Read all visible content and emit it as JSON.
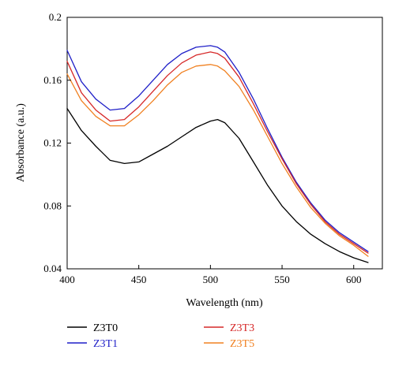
{
  "chart_data": {
    "type": "line",
    "title": "",
    "xlabel": "Wavelength (nm)",
    "ylabel": "Absorbance (a.u.)",
    "xlim": [
      400,
      620
    ],
    "ylim": [
      0.04,
      0.2
    ],
    "xticks": [
      400,
      450,
      500,
      550,
      600
    ],
    "yticks": [
      0.04,
      0.08,
      0.12,
      0.16,
      0.2
    ],
    "xtick_labels": [
      "400",
      "450",
      "500",
      "550",
      "600"
    ],
    "ytick_labels": [
      "0.04",
      "0.08",
      "0.12",
      "0.16",
      "0.2"
    ],
    "grid": false,
    "legend_position": "bottom",
    "series": [
      {
        "name": "Z3T0",
        "color": "#000000",
        "x": [
          400,
          410,
          420,
          430,
          440,
          450,
          460,
          470,
          480,
          490,
          500,
          505,
          510,
          520,
          530,
          540,
          550,
          560,
          570,
          580,
          590,
          600,
          610
        ],
        "y": [
          0.142,
          0.128,
          0.118,
          0.109,
          0.107,
          0.108,
          0.113,
          0.118,
          0.124,
          0.13,
          0.134,
          0.135,
          0.133,
          0.123,
          0.108,
          0.093,
          0.08,
          0.07,
          0.062,
          0.056,
          0.051,
          0.047,
          0.044
        ]
      },
      {
        "name": "Z3T1",
        "color": "#1f1fc8",
        "x": [
          400,
          410,
          420,
          430,
          440,
          450,
          460,
          470,
          480,
          490,
          500,
          505,
          510,
          520,
          530,
          540,
          550,
          560,
          570,
          580,
          590,
          600,
          610
        ],
        "y": [
          0.179,
          0.159,
          0.148,
          0.141,
          0.142,
          0.15,
          0.16,
          0.17,
          0.177,
          0.181,
          0.182,
          0.181,
          0.178,
          0.165,
          0.148,
          0.129,
          0.111,
          0.095,
          0.082,
          0.071,
          0.063,
          0.057,
          0.051
        ]
      },
      {
        "name": "Z3T3",
        "color": "#d62828",
        "x": [
          400,
          410,
          420,
          430,
          440,
          450,
          460,
          470,
          480,
          490,
          500,
          505,
          510,
          520,
          530,
          540,
          550,
          560,
          570,
          580,
          590,
          600,
          610
        ],
        "y": [
          0.172,
          0.152,
          0.141,
          0.134,
          0.135,
          0.143,
          0.153,
          0.163,
          0.171,
          0.176,
          0.178,
          0.177,
          0.174,
          0.162,
          0.145,
          0.127,
          0.11,
          0.094,
          0.081,
          0.07,
          0.062,
          0.056,
          0.05
        ]
      },
      {
        "name": "Z3T5",
        "color": "#f08020",
        "x": [
          400,
          410,
          420,
          430,
          440,
          450,
          460,
          470,
          480,
          490,
          500,
          505,
          510,
          520,
          530,
          540,
          550,
          560,
          570,
          580,
          590,
          600,
          610
        ],
        "y": [
          0.164,
          0.147,
          0.137,
          0.131,
          0.131,
          0.138,
          0.147,
          0.157,
          0.165,
          0.169,
          0.17,
          0.169,
          0.166,
          0.156,
          0.141,
          0.124,
          0.107,
          0.092,
          0.079,
          0.069,
          0.061,
          0.055,
          0.048
        ]
      }
    ]
  }
}
